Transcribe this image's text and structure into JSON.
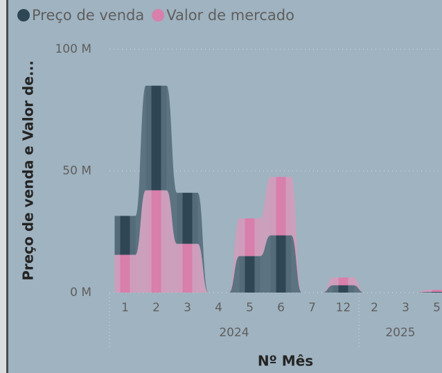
{
  "chart_data": {
    "type": "ribbon",
    "y_axis_title": "Preço de venda e Valor de...",
    "x_axis_title": "Nº Mês",
    "legend_position": "top-left",
    "grid": true,
    "categories": [
      "1",
      "2",
      "3",
      "4",
      "5",
      "6",
      "7",
      "12",
      "2",
      "3",
      "5"
    ],
    "x_groups": [
      "2024",
      "2024",
      "2024",
      "2024",
      "2024",
      "2024",
      "2024",
      "2024",
      "2025",
      "2025",
      "2025"
    ],
    "ylim": [
      0,
      100000000
    ],
    "yticks": [
      {
        "value": 0,
        "label": "0 M"
      },
      {
        "value": 50000000,
        "label": "50 M"
      },
      {
        "value": 100000000,
        "label": "100 M"
      }
    ],
    "series": [
      {
        "name": "Preço de venda",
        "color": "#2f4654",
        "ribbon_color": "#546b7a",
        "values": [
          16000000,
          43000000,
          21000000,
          0,
          15000000,
          23500000,
          0,
          3000000,
          0,
          0,
          300000
        ]
      },
      {
        "name": "Valor de mercado",
        "color": "#d87fac",
        "ribbon_color": "#cf9dbb",
        "values": [
          15500000,
          42000000,
          20000000,
          0,
          15500000,
          24000000,
          0,
          3200000,
          0,
          0,
          800000
        ]
      }
    ]
  }
}
